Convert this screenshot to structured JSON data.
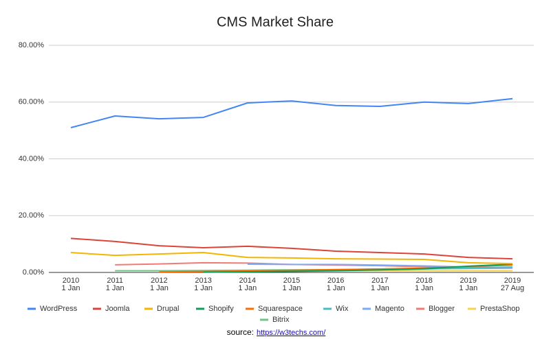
{
  "chart_data": {
    "type": "line",
    "title": "CMS Market Share",
    "categories": [
      [
        "2010",
        "1 Jan"
      ],
      [
        "2011",
        "1 Jan"
      ],
      [
        "2012",
        "1 Jan"
      ],
      [
        "2013",
        "1 Jan"
      ],
      [
        "2014",
        "1 Jan"
      ],
      [
        "2015",
        "1 Jan"
      ],
      [
        "2016",
        "1 Jan"
      ],
      [
        "2017",
        "1 Jan"
      ],
      [
        "2018",
        "1 Jan"
      ],
      [
        "2019",
        "1 Jan"
      ],
      [
        "2019",
        "27 Aug"
      ]
    ],
    "ylim": [
      0,
      80
    ],
    "yticks": [
      {
        "value": 0,
        "label": "0.00%"
      },
      {
        "value": 20,
        "label": "20.00%"
      },
      {
        "value": 40,
        "label": "40.00%"
      },
      {
        "value": 60,
        "label": "60.00%"
      },
      {
        "value": 80,
        "label": "80.00%"
      }
    ],
    "grid": true,
    "legend": "bottom",
    "series": [
      {
        "name": "WordPress",
        "color": "#4285f4",
        "values": [
          51.0,
          55.1,
          54.1,
          54.6,
          59.7,
          60.4,
          58.8,
          58.5,
          60.0,
          59.5,
          61.2
        ]
      },
      {
        "name": "Joomla",
        "color": "#db4437",
        "values": [
          12.0,
          10.9,
          9.4,
          8.7,
          9.2,
          8.5,
          7.5,
          7.0,
          6.5,
          5.3,
          4.8
        ]
      },
      {
        "name": "Drupal",
        "color": "#f4b400",
        "values": [
          7.0,
          6.0,
          6.5,
          7.0,
          5.3,
          5.1,
          4.8,
          4.7,
          4.6,
          3.4,
          3.1
        ]
      },
      {
        "name": "Shopify",
        "color": "#0f9d58",
        "values": [
          null,
          null,
          null,
          0.1,
          0.2,
          0.4,
          0.6,
          0.9,
          1.3,
          2.2,
          2.9
        ]
      },
      {
        "name": "Squarespace",
        "color": "#ff6d01",
        "values": [
          null,
          null,
          0.2,
          0.3,
          0.5,
          0.8,
          1.0,
          1.2,
          1.5,
          2.1,
          2.6
        ]
      },
      {
        "name": "Wix",
        "color": "#46bdc6",
        "values": [
          null,
          null,
          null,
          null,
          0.3,
          0.5,
          0.7,
          0.9,
          1.2,
          1.6,
          1.9
        ]
      },
      {
        "name": "Magento",
        "color": "#7baaf7",
        "values": [
          null,
          null,
          null,
          null,
          2.9,
          2.8,
          2.8,
          2.6,
          2.3,
          1.9,
          1.7
        ]
      },
      {
        "name": "Blogger",
        "color": "#f07b72",
        "values": [
          null,
          2.7,
          3.0,
          3.4,
          3.3,
          2.8,
          2.6,
          2.4,
          2.0,
          1.8,
          1.6
        ]
      },
      {
        "name": "PrestaShop",
        "color": "#fcd04f",
        "values": [
          null,
          null,
          null,
          null,
          null,
          0.4,
          0.5,
          0.6,
          0.6,
          0.6,
          0.6
        ]
      },
      {
        "name": "Bitrix",
        "color": "#71c287",
        "values": [
          null,
          0.6,
          0.6,
          0.7,
          0.8,
          0.9,
          1.0,
          1.2,
          1.3,
          1.4,
          1.5
        ]
      }
    ],
    "source_text": "source:",
    "source_url": "https://w3techs.com/"
  }
}
